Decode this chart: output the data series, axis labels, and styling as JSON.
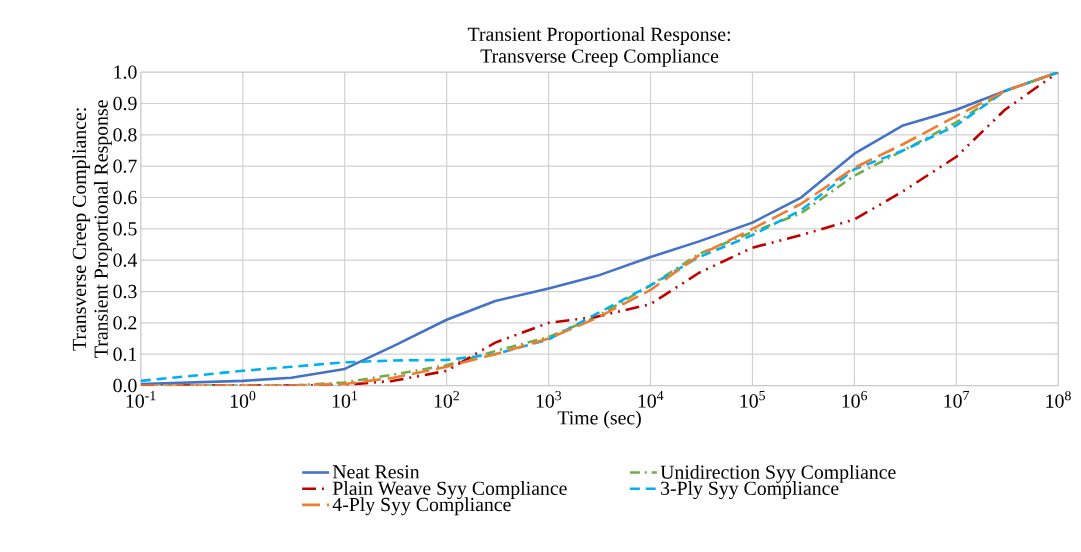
{
  "chart_data": {
    "type": "line",
    "title": "Transient Proportional Response:\nTransverse Creep Compliance",
    "xlabel": "Time (sec)",
    "ylabel": "Transverse Creep Compliance:\nTransient Proportional Response",
    "log": "x",
    "grid": true,
    "legend": "bottom",
    "marker": "none",
    "x": [
      0.1,
      1,
      3,
      10,
      30,
      100,
      300,
      1000,
      3000,
      10000,
      30000,
      100000,
      300000,
      1000000,
      3000000,
      10000000,
      30000000,
      100000000
    ],
    "xlim": [
      0.1,
      100000000
    ],
    "xticks": [
      {
        "value": 0.1,
        "label": "10$^{-1}$"
      },
      {
        "value": 1,
        "label": "10$^{0}$"
      },
      {
        "value": 10,
        "label": "10$^{1}$"
      },
      {
        "value": 100,
        "label": "10$^{2}$"
      },
      {
        "value": 1000,
        "label": "10$^{3}$"
      },
      {
        "value": 10000,
        "label": "10$^{4}$"
      },
      {
        "value": 100000,
        "label": "10$^{5}$"
      },
      {
        "value": 1000000,
        "label": "10$^{6}$"
      },
      {
        "value": 10000000,
        "label": "10$^{7}$"
      },
      {
        "value": 100000000,
        "label": "10$^{8}$"
      }
    ],
    "ylim": [
      0,
      1
    ],
    "yticks": [
      {
        "value": 0,
        "label": "0.0"
      },
      0.1,
      0.2,
      0.3,
      0.4,
      0.5,
      0.6,
      0.7,
      0.8,
      0.9,
      {
        "value": 1,
        "label": "1.0"
      }
    ],
    "series": [
      {
        "name": "Neat Resin",
        "color": "#4472c4",
        "line_style": "solid",
        "values": [
          0.005,
          0.015,
          0.025,
          0.053,
          0.126,
          0.21,
          0.27,
          0.31,
          0.35,
          0.41,
          0.46,
          0.52,
          0.6,
          0.74,
          0.83,
          0.88,
          0.94,
          1.0
        ]
      },
      {
        "name": "Unidirection Syy Compliance",
        "color": "#70ad47",
        "line_style": "dashdotted",
        "values": [
          0,
          0,
          0,
          0.01,
          0.035,
          0.065,
          0.11,
          0.155,
          0.22,
          0.32,
          0.42,
          0.49,
          0.55,
          0.67,
          0.75,
          0.84,
          0.94,
          1.0
        ]
      },
      {
        "name": "Plain Weave Syy Compliance",
        "color": "#c00000",
        "line_style": "dashdotdotted",
        "values": [
          0,
          0,
          0,
          0.002,
          0.015,
          0.047,
          0.137,
          0.2,
          0.22,
          0.26,
          0.36,
          0.44,
          0.48,
          0.53,
          0.62,
          0.73,
          0.88,
          1.0
        ]
      },
      {
        "name": "3-Ply Syy Compliance",
        "color": "#00b0f0",
        "line_style": "dashed",
        "values": [
          0.015,
          0.047,
          0.06,
          0.074,
          0.08,
          0.082,
          0.1,
          0.147,
          0.23,
          0.32,
          0.41,
          0.48,
          0.56,
          0.69,
          0.75,
          0.83,
          0.94,
          1.0
        ]
      },
      {
        "name": "4-Ply Syy Compliance",
        "color": "#ed7d31",
        "line_style": "long dashed",
        "values": [
          0,
          0,
          0,
          0.005,
          0.025,
          0.06,
          0.1,
          0.15,
          0.216,
          0.305,
          0.416,
          0.5,
          0.58,
          0.695,
          0.77,
          0.86,
          0.94,
          1.0
        ]
      }
    ]
  }
}
